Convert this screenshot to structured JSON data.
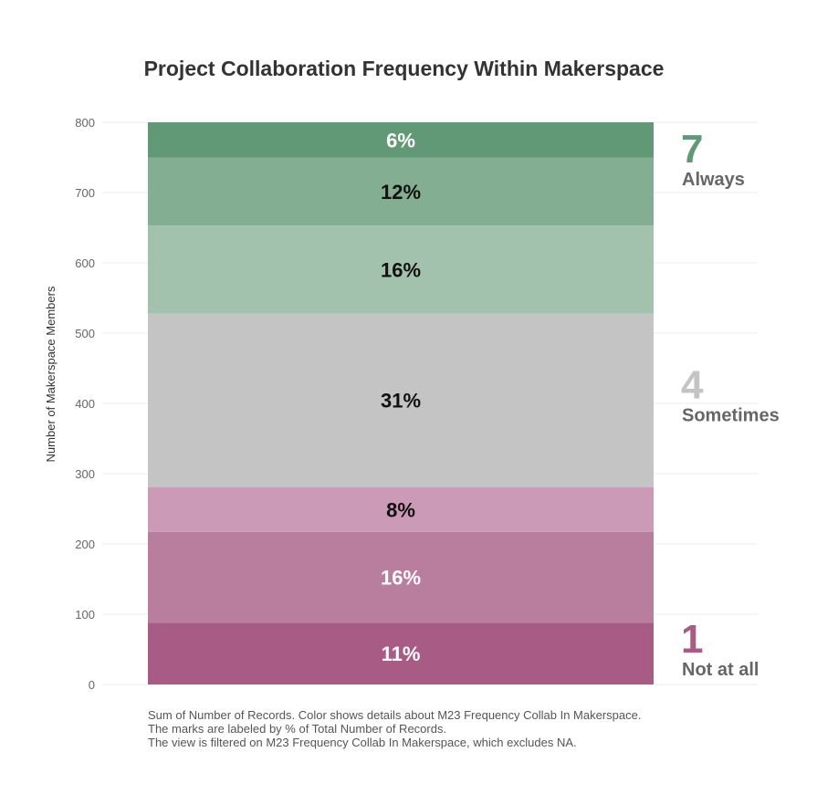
{
  "chart_data": {
    "type": "bar",
    "stacked": true,
    "title": "Project Collaboration Frequency Within Makerspace",
    "ylabel": "Number of Makerspace Members",
    "ylim": [
      0,
      800
    ],
    "yticks": [
      "0",
      "100",
      "200",
      "300",
      "400",
      "500",
      "600",
      "700",
      "800"
    ],
    "grid": true,
    "segments": [
      {
        "level": 1,
        "value": 88,
        "label": "11%",
        "color": "#a85c85",
        "label_color": "#ffffff"
      },
      {
        "level": 2,
        "value": 129,
        "label": "16%",
        "color": "#b97d9e",
        "label_color": "#ffffff"
      },
      {
        "level": 3,
        "value": 64,
        "label": "8%",
        "color": "#cb9ab6",
        "label_color": "#111111"
      },
      {
        "level": 4,
        "value": 247,
        "label": "31%",
        "color": "#c4c4c4",
        "label_color": "#111111"
      },
      {
        "level": 5,
        "value": 125,
        "label": "16%",
        "color": "#a3c2ae",
        "label_color": "#111111"
      },
      {
        "level": 6,
        "value": 97,
        "label": "12%",
        "color": "#84ae92",
        "label_color": "#111111"
      },
      {
        "level": 7,
        "value": 50,
        "label": "6%",
        "color": "#619977",
        "label_color": "#ffffff"
      }
    ],
    "scale_labels": [
      {
        "number": "7",
        "word": "Always",
        "at_level": 7,
        "color": "#619977"
      },
      {
        "number": "4",
        "word": "Sometimes",
        "at_level": 4,
        "color": "#c4c4c4"
      },
      {
        "number": "1",
        "word": "Not at all",
        "at_level": 1,
        "color": "#a85c85"
      }
    ]
  },
  "footnote": [
    "Sum of Number of Records.  Color shows details about M23 Frequency Collab In Makerspace.",
    "The marks are labeled by % of Total Number of Records.",
    "The view is filtered on M23 Frequency Collab In Makerspace, which excludes NA."
  ]
}
